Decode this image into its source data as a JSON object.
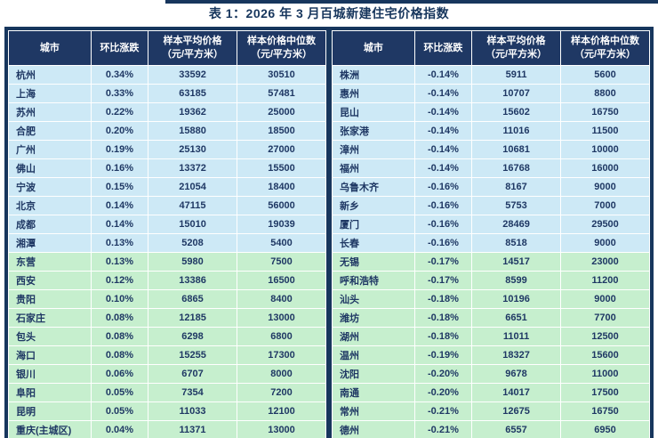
{
  "title": "表 1：2026 年 3 月百城新建住宅价格指数",
  "columns": [
    "城市",
    "环比涨跌",
    "样本平均价格\n（元/平方米）",
    "样本价格中位数\n（元/平方米）"
  ],
  "row_color_split": 10,
  "colors": {
    "panel_bg": "#17365d",
    "header_bg": "#1f3864",
    "row_blue": "#cde9f6",
    "row_green": "#c6efce",
    "text": "#1f3864"
  },
  "tables": [
    {
      "id": "left",
      "rows": [
        [
          "杭州",
          "0.34%",
          "33592",
          "30510"
        ],
        [
          "上海",
          "0.33%",
          "63185",
          "57481"
        ],
        [
          "苏州",
          "0.22%",
          "19362",
          "25000"
        ],
        [
          "合肥",
          "0.20%",
          "15880",
          "18500"
        ],
        [
          "广州",
          "0.19%",
          "25130",
          "27000"
        ],
        [
          "佛山",
          "0.16%",
          "13372",
          "15500"
        ],
        [
          "宁波",
          "0.15%",
          "21054",
          "18400"
        ],
        [
          "北京",
          "0.14%",
          "47115",
          "56000"
        ],
        [
          "成都",
          "0.14%",
          "15010",
          "19039"
        ],
        [
          "湘潭",
          "0.13%",
          "5208",
          "5400"
        ],
        [
          "东营",
          "0.13%",
          "5980",
          "7500"
        ],
        [
          "西安",
          "0.12%",
          "13386",
          "16500"
        ],
        [
          "贵阳",
          "0.10%",
          "6865",
          "8400"
        ],
        [
          "石家庄",
          "0.08%",
          "12185",
          "13000"
        ],
        [
          "包头",
          "0.08%",
          "6298",
          "6800"
        ],
        [
          "海口",
          "0.08%",
          "15255",
          "17300"
        ],
        [
          "银川",
          "0.06%",
          "6707",
          "8000"
        ],
        [
          "阜阳",
          "0.05%",
          "7354",
          "7200"
        ],
        [
          "昆明",
          "0.05%",
          "11033",
          "12100"
        ],
        [
          "重庆(主城区)",
          "0.04%",
          "11371",
          "13000"
        ]
      ]
    },
    {
      "id": "right",
      "rows": [
        [
          "株洲",
          "-0.14%",
          "5911",
          "5600"
        ],
        [
          "惠州",
          "-0.14%",
          "10707",
          "8800"
        ],
        [
          "昆山",
          "-0.14%",
          "15602",
          "16750"
        ],
        [
          "张家港",
          "-0.14%",
          "11016",
          "11500"
        ],
        [
          "漳州",
          "-0.14%",
          "10681",
          "10000"
        ],
        [
          "福州",
          "-0.14%",
          "16768",
          "16000"
        ],
        [
          "乌鲁木齐",
          "-0.16%",
          "8167",
          "9000"
        ],
        [
          "新乡",
          "-0.16%",
          "5753",
          "7000"
        ],
        [
          "厦门",
          "-0.16%",
          "28469",
          "29500"
        ],
        [
          "长春",
          "-0.16%",
          "8518",
          "9000"
        ],
        [
          "无锡",
          "-0.17%",
          "14517",
          "23000"
        ],
        [
          "呼和浩特",
          "-0.17%",
          "8599",
          "11200"
        ],
        [
          "汕头",
          "-0.18%",
          "10196",
          "9000"
        ],
        [
          "潍坊",
          "-0.18%",
          "6651",
          "7700"
        ],
        [
          "湖州",
          "-0.18%",
          "11011",
          "12500"
        ],
        [
          "温州",
          "-0.19%",
          "18327",
          "15600"
        ],
        [
          "沈阳",
          "-0.20%",
          "9678",
          "11000"
        ],
        [
          "南通",
          "-0.20%",
          "14017",
          "17500"
        ],
        [
          "常州",
          "-0.21%",
          "12675",
          "16750"
        ],
        [
          "德州",
          "-0.21%",
          "6557",
          "6950"
        ]
      ]
    }
  ]
}
